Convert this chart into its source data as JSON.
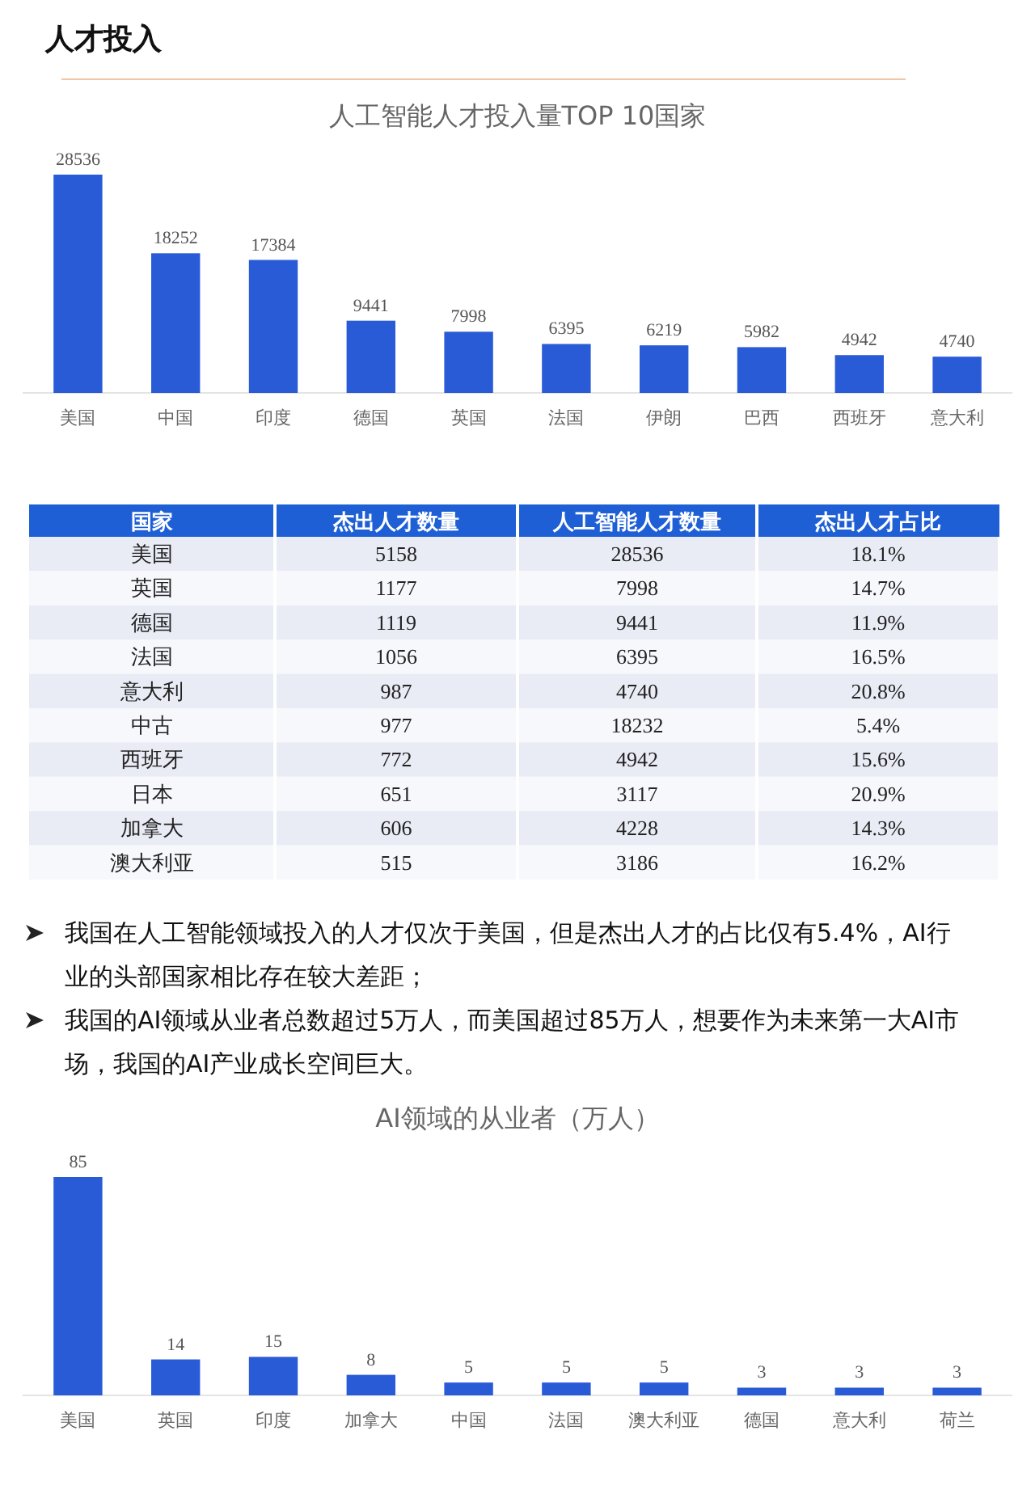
{
  "chart_data": [
    {
      "type": "other",
      "title": "人才投入"
    },
    {
      "type": "bar",
      "title": "人工智能人才投入量TOP 10国家",
      "categories": [
        "美国",
        "中国",
        "印度",
        "德国",
        "英国",
        "法国",
        "伊朗",
        "巴西",
        "西班牙",
        "意大利"
      ],
      "values": [
        28536,
        18252,
        17384,
        9441,
        7998,
        6395,
        6219,
        5982,
        4942,
        4740
      ],
      "color": "#2a5bd7",
      "data_labels": true
    },
    {
      "type": "other",
      "xlabel": "国家",
      "categories": [
        "美国",
        "英国",
        "德国",
        "法国",
        "意大利",
        "中古",
        "西班牙",
        "日本",
        "加拿大",
        "澳大利亚"
      ],
      "data_labels": true,
      "series": [
        {
          "name": "杰出人才数量",
          "colors": [
            "#e9ebf5",
            "#f7f8fc",
            "#e9ebf5",
            "#f7f8fc",
            "#e9ebf5",
            "#f7f8fc",
            "#e9ebf5",
            "#f7f8fc",
            "#e9ebf5",
            "#f7f8fc"
          ],
          "values": [
            5158,
            1177,
            1119,
            1056,
            987,
            977,
            772,
            651,
            606,
            515
          ]
        },
        {
          "name": "人工智能人才数量",
          "colors": [
            "#e9ebf5",
            "#f7f8fc",
            "#e9ebf5",
            "#f7f8fc",
            "#e9ebf5",
            "#f7f8fc",
            "#e9ebf5",
            "#f7f8fc",
            "#e9ebf5",
            "#f7f8fc"
          ],
          "values": [
            28536,
            7998,
            9441,
            6395,
            4740,
            18232,
            4942,
            3117,
            4228,
            3186
          ]
        },
        {
          "name": "杰出人才占比",
          "colors": [
            "#e9ebf5",
            "#f7f8fc",
            "#e9ebf5",
            "#f7f8fc",
            "#e9ebf5",
            "#f7f8fc",
            "#e9ebf5",
            "#f7f8fc",
            "#e9ebf5",
            "#f7f8fc"
          ],
          "values": [
            18.1,
            14.7,
            11.9,
            16.5,
            20.8,
            5.4,
            15.6,
            20.9,
            14.3,
            16.2
          ],
          "value_labels": [
            "18.1%",
            "14.7%",
            "11.9%",
            "16.5%",
            "20.8%",
            "5.4%",
            "15.6%",
            "20.9%",
            "14.3%",
            "16.2%"
          ]
        }
      ]
    },
    {
      "type": "other",
      "annotations": [
        "我国在人工智能领域投入的人才仅次于美国，但是杰出人才的占比仅有5.4%，AI行业的头部国家相比存在较大差距；",
        "我国的AI领域从业者总数超过5万人，而美国超过85万人，想要作为未来第一大AI市场，我国的AI产业成长空间巨大。"
      ]
    },
    {
      "type": "bar",
      "title": "AI领域的从业者（万人）",
      "categories": [
        "美国",
        "英国",
        "印度",
        "加拿大",
        "中国",
        "法国",
        "澳大利亚",
        "德国",
        "意大利",
        "荷兰"
      ],
      "values": [
        85,
        14,
        15,
        8,
        5,
        5,
        5,
        3,
        3,
        3
      ],
      "color": "#2a5bd7",
      "data_labels": true
    }
  ]
}
